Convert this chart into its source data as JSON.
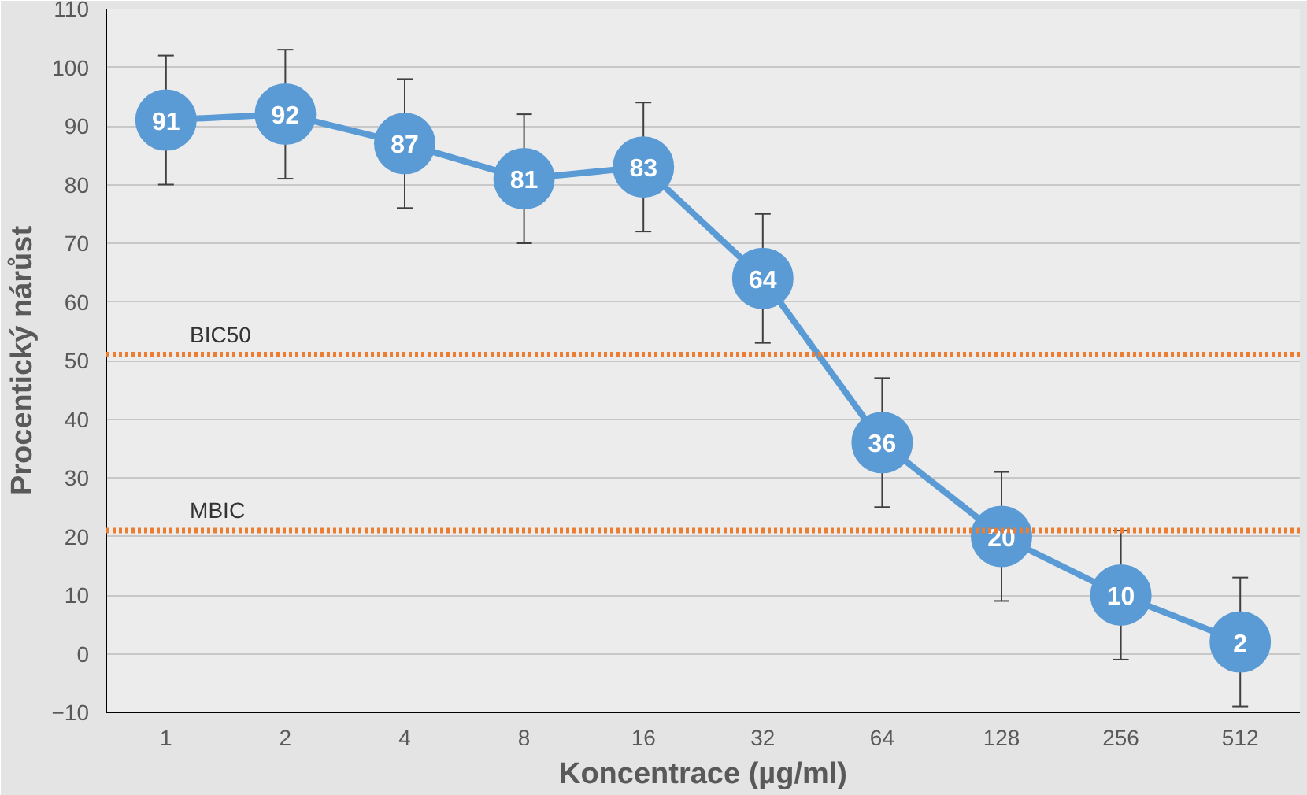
{
  "chart_data": {
    "type": "line",
    "xlabel": "Koncentrace (µg/ml)",
    "ylabel": "Procentický nárůst",
    "categories": [
      "1",
      "2",
      "4",
      "8",
      "16",
      "32",
      "64",
      "128",
      "256",
      "512"
    ],
    "series": [
      {
        "color": "#5b9bd5",
        "values": [
          91,
          92,
          87,
          81,
          83,
          64,
          36,
          20,
          10,
          2
        ],
        "errors": [
          11,
          11,
          11,
          11,
          11,
          11,
          11,
          11,
          11,
          11
        ]
      }
    ],
    "ylim": [
      -10,
      110
    ],
    "yticks": [
      -10,
      0,
      10,
      20,
      30,
      40,
      50,
      60,
      70,
      80,
      90,
      100,
      110
    ],
    "ref_lines": [
      {
        "axis": "y",
        "value": 51,
        "label": "BIC50",
        "color": "#ed7d31",
        "line_style": "dotted"
      },
      {
        "axis": "y",
        "value": 21,
        "label": "MBIC",
        "color": "#ed7d31",
        "line_style": "dotted"
      }
    ],
    "grid": "y",
    "marker": "circle",
    "data_labels": true
  }
}
